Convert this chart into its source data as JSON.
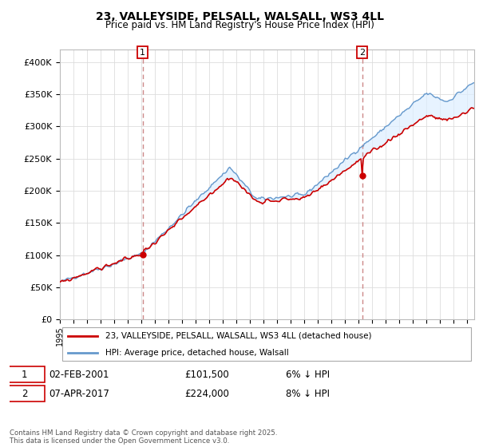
{
  "title": "23, VALLEYSIDE, PELSALL, WALSALL, WS3 4LL",
  "subtitle": "Price paid vs. HM Land Registry's House Price Index (HPI)",
  "ylim": [
    0,
    420000
  ],
  "yticks": [
    0,
    50000,
    100000,
    150000,
    200000,
    250000,
    300000,
    350000,
    400000
  ],
  "ytick_labels": [
    "£0",
    "£50K",
    "£100K",
    "£150K",
    "£200K",
    "£250K",
    "£300K",
    "£350K",
    "£400K"
  ],
  "legend_entries": [
    "23, VALLEYSIDE, PELSALL, WALSALL, WS3 4LL (detached house)",
    "HPI: Average price, detached house, Walsall"
  ],
  "line_color_red": "#cc0000",
  "line_color_blue": "#6699cc",
  "fill_color": "#ddeeff",
  "dashed_line_color": "#cc8888",
  "marker_edge_color": "#cc0000",
  "grid_color": "#dddddd",
  "sale1_year": 2001.083,
  "sale1_value": 101500,
  "sale2_year": 2017.25,
  "sale2_value": 224000,
  "footer": "Contains HM Land Registry data © Crown copyright and database right 2025.\nThis data is licensed under the Open Government Licence v3.0."
}
